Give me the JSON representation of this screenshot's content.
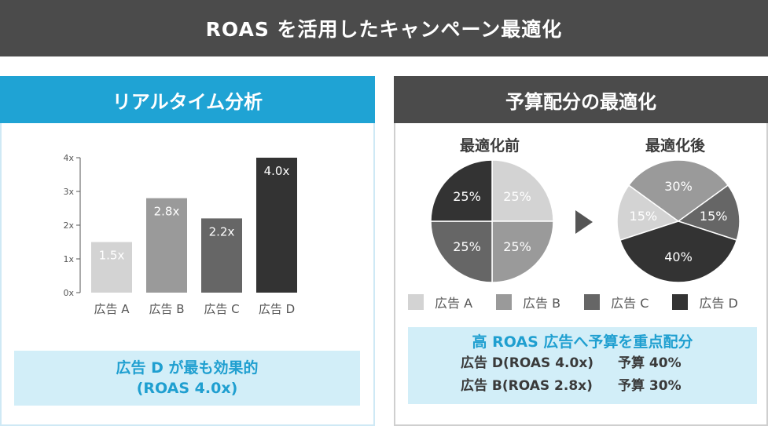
{
  "banner": {
    "title": "ROAS を活用したキャンペーン最適化"
  },
  "left": {
    "header": "リアルタイム分析",
    "note_line1": "広告 D が最も効果的",
    "note_line2": "(ROAS 4.0x)"
  },
  "right": {
    "header": "予算配分の最適化",
    "before_title": "最適化前",
    "after_title": "最適化後",
    "legend": [
      {
        "label": "広告 A",
        "color": "#d3d3d3"
      },
      {
        "label": "広告 B",
        "color": "#9a9a9a"
      },
      {
        "label": "広告 C",
        "color": "#666666"
      },
      {
        "label": "広告 D",
        "color": "#333333"
      }
    ],
    "note_title": "高 ROAS 広告へ予算を重点配分",
    "allocations": [
      {
        "ad": "広告 D(ROAS 4.0x)",
        "budget": "予算 40%"
      },
      {
        "ad": "広告 B(ROAS 2.8x)",
        "budget": "予算 30%"
      }
    ]
  },
  "chart_data": [
    {
      "type": "bar",
      "categories": [
        "広告 A",
        "広告 B",
        "広告 C",
        "広告 D"
      ],
      "values": [
        1.5,
        2.8,
        2.2,
        4.0
      ],
      "data_labels": [
        "1.5x",
        "2.8x",
        "2.2x",
        "4.0x"
      ],
      "colors": [
        "#d3d3d3",
        "#9a9a9a",
        "#666666",
        "#333333"
      ],
      "ylim": [
        0,
        4
      ],
      "yticks": [
        "0x",
        "1x",
        "2x",
        "3x",
        "4x"
      ]
    },
    {
      "type": "pie",
      "title": "最適化前",
      "categories": [
        "広告 A",
        "広告 B",
        "広告 C",
        "広告 D"
      ],
      "values": [
        25,
        25,
        25,
        25
      ],
      "labels": [
        "25%",
        "25%",
        "25%",
        "25%"
      ]
    },
    {
      "type": "pie",
      "title": "最適化後",
      "categories": [
        "広告 A",
        "広告 B",
        "広告 C",
        "広告 D"
      ],
      "values": [
        15,
        30,
        15,
        40
      ],
      "labels": [
        "15%",
        "30%",
        "15%",
        "40%"
      ]
    }
  ]
}
